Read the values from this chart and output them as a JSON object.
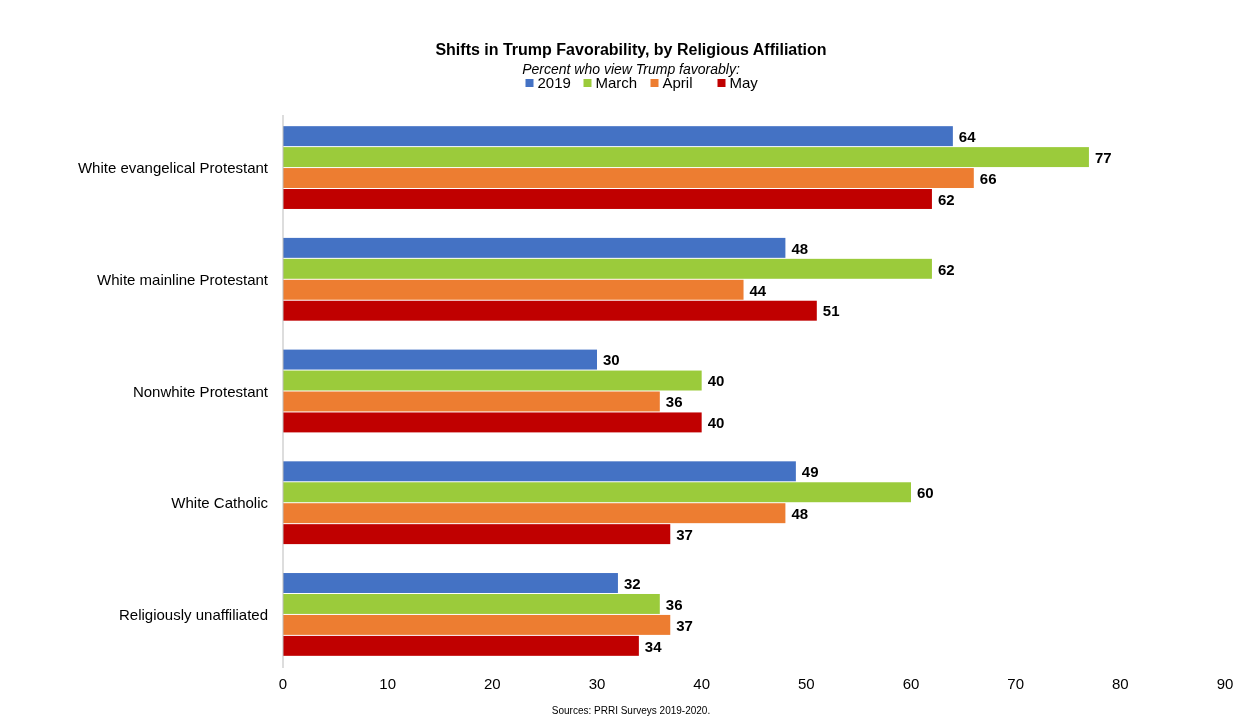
{
  "chart_data": {
    "type": "bar",
    "orientation": "horizontal",
    "title": "Shifts in Trump Favorability, by Religious Affiliation",
    "subtitle": "Percent who view Trump favorably:",
    "categories": [
      "White evangelical Protestant",
      "White mainline Protestant",
      "Nonwhite Protestant",
      "White Catholic",
      "Religiously unaffiliated"
    ],
    "series": [
      {
        "name": "2019",
        "color": "#4472c4",
        "values": [
          64,
          48,
          30,
          49,
          32
        ]
      },
      {
        "name": "March",
        "color": "#9bcb3b",
        "values": [
          77,
          62,
          40,
          60,
          36
        ]
      },
      {
        "name": "April",
        "color": "#ed7d31",
        "values": [
          66,
          44,
          36,
          48,
          37
        ]
      },
      {
        "name": "May",
        "color": "#c00000",
        "values": [
          62,
          51,
          40,
          37,
          34
        ]
      }
    ],
    "xlim": [
      0,
      90
    ],
    "xticks": [
      0,
      10,
      20,
      30,
      40,
      50,
      60,
      70,
      80,
      90
    ],
    "data_labels": true,
    "legend": "top",
    "grid": false,
    "annotations": [
      "Sources: PRRI Surveys 2019-2020."
    ]
  }
}
